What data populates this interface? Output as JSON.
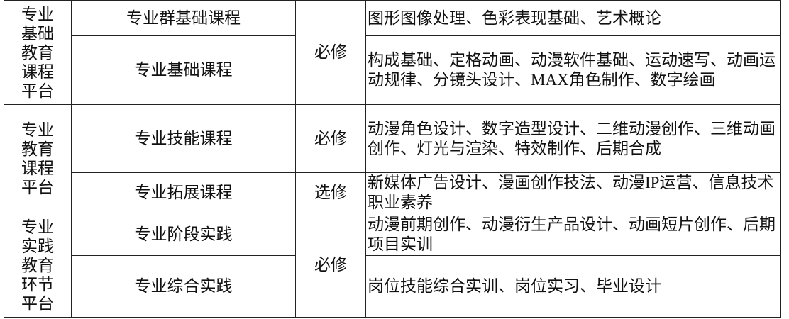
{
  "table": {
    "rows": [
      [
        "专业基础教育课程平台",
        "专业群基础课程",
        "必修",
        "图形图像处理、色彩表现基础、艺术概论"
      ],
      [
        "专业基础课程",
        "构成基础、定格动画、动漫软件基础、运动速写、动画运动规律、分镜头设计、MAX角色制作、数字绘画"
      ],
      [
        "专业教育课程平台",
        "专业技能课程",
        "必修",
        "动漫角色设计、数字造型设计、二维动漫创作、三维动画创作、灯光与渲染、特效制作、后期合成"
      ],
      [
        "专业拓展课程",
        "选修",
        "新媒体广告设计、漫画创作技法、动漫IP运营、信息技术职业素养"
      ],
      [
        "专业实践教育环节平台",
        "专业阶段实践",
        "必修",
        "动漫前期创作、动漫衍生产品设计、动画短片创作、后期项目实训"
      ],
      [
        "专业综合实践",
        "岗位技能综合实训、岗位实习、毕业设计"
      ]
    ]
  }
}
